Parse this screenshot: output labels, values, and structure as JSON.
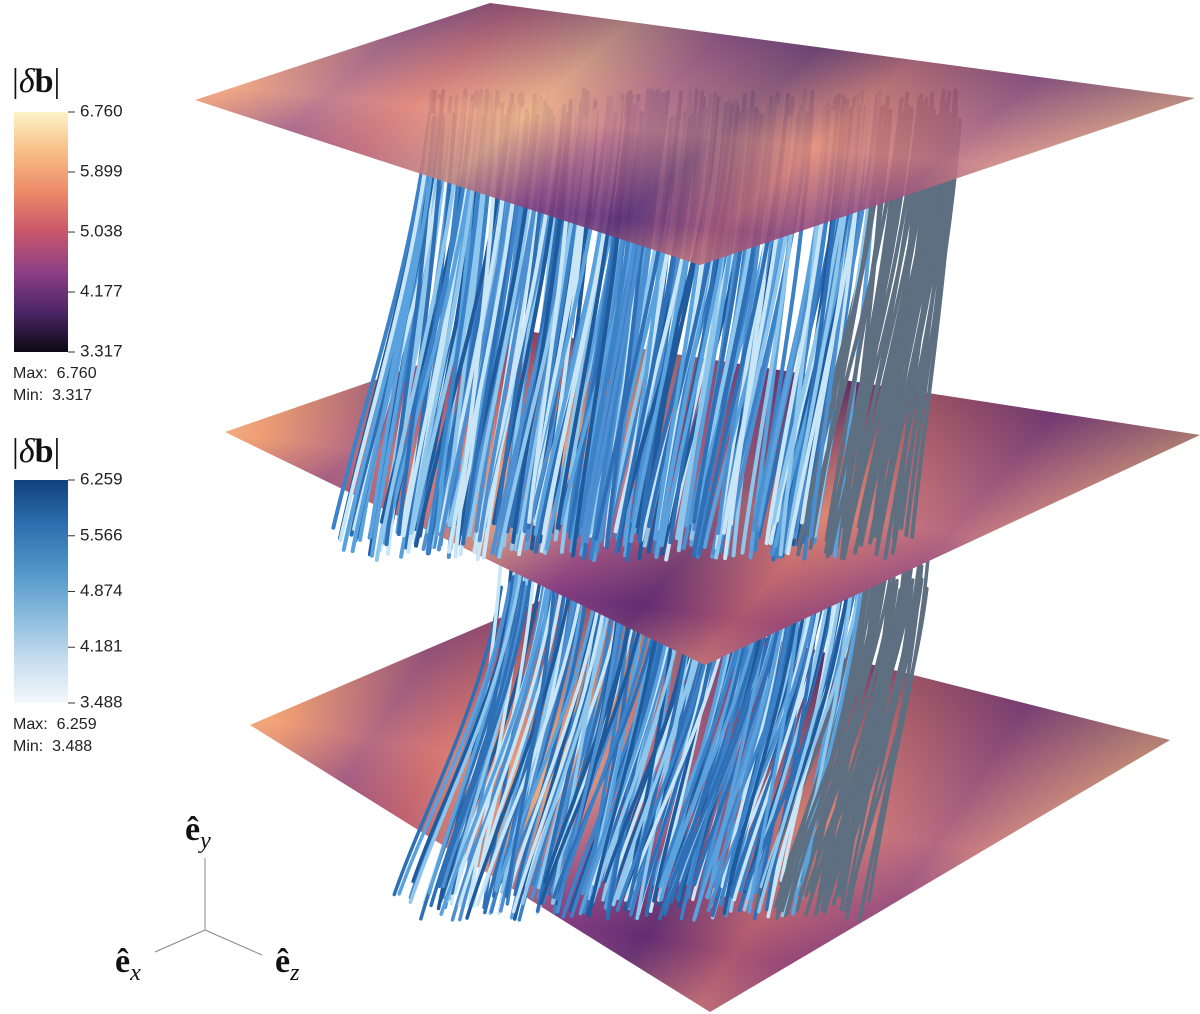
{
  "colorbars": [
    {
      "title": {
        "abs_open": "|",
        "delta": "δ",
        "bold": "b",
        "abs_close": "|"
      },
      "ticks": [
        {
          "value": 6.76,
          "label": "6.760"
        },
        {
          "value": 5.899,
          "label": "5.899"
        },
        {
          "value": 5.038,
          "label": "5.038"
        },
        {
          "value": 4.177,
          "label": "4.177"
        },
        {
          "value": 3.317,
          "label": "3.317"
        }
      ],
      "range": [
        {
          "value": 3.317,
          "label": "3.317"
        },
        {
          "value": 6.76,
          "label": "6.760"
        }
      ],
      "colormap": [
        "#fcf3c8",
        "#f7be86",
        "#ec8a68",
        "#c9566a",
        "#8d3f86",
        "#4c2566",
        "#0c0913"
      ],
      "max_text": "Max:  6.760",
      "min_text": "Min:  3.317"
    },
    {
      "title": {
        "abs_open": "|",
        "delta": "δ",
        "bold": "b",
        "abs_close": "|"
      },
      "ticks": [
        {
          "value": 6.259,
          "label": "6.259"
        },
        {
          "value": 5.566,
          "label": "5.566"
        },
        {
          "value": 4.874,
          "label": "4.874"
        },
        {
          "value": 4.181,
          "label": "4.181"
        },
        {
          "value": 3.488,
          "label": "3.488"
        }
      ],
      "range": [
        {
          "value": 3.488,
          "label": "3.488"
        },
        {
          "value": 6.259,
          "label": "6.259"
        }
      ],
      "colormap": [
        "#11407e",
        "#2d6fae",
        "#4f95c7",
        "#86b9dc",
        "#c4dcee",
        "#f4f8fc"
      ],
      "max_text": "Max:  6.259",
      "min_text": "Min:  3.488"
    }
  ],
  "axes": [
    {
      "hat": "ê",
      "sub": "y"
    },
    {
      "hat": "ê",
      "sub": "x"
    },
    {
      "hat": "ê",
      "sub": "z"
    }
  ]
}
